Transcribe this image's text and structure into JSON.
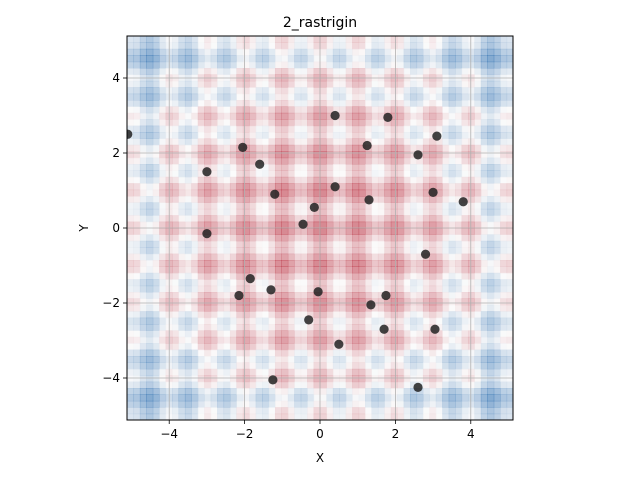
{
  "chart_data": {
    "type": "scatter",
    "title": "2_rastrigin",
    "xlabel": "X",
    "ylabel": "Y",
    "xlim": [
      -5.12,
      5.12
    ],
    "ylim": [
      -5.12,
      5.12
    ],
    "xticks": [
      -4,
      -2,
      0,
      2,
      4
    ],
    "yticks": [
      -4,
      -2,
      0,
      2,
      4
    ],
    "xtick_labels": [
      "−4",
      "−2",
      "0",
      "2",
      "4"
    ],
    "ytick_labels": [
      "−4",
      "−2",
      "0",
      "2",
      "4"
    ],
    "grid": true,
    "background": {
      "type": "heatmap",
      "function": "rastrigin",
      "colormap": "RdBu",
      "note_colors": {
        "low": "#c46a7a",
        "mid": "#f7f7f7",
        "high": "#4a88bb"
      }
    },
    "marker_color": "#222222",
    "points": [
      {
        "x": -5.1,
        "y": 2.5
      },
      {
        "x": 0.4,
        "y": 3.0
      },
      {
        "x": 1.8,
        "y": 2.95
      },
      {
        "x": 3.1,
        "y": 2.45
      },
      {
        "x": -2.05,
        "y": 2.15
      },
      {
        "x": 1.25,
        "y": 2.2
      },
      {
        "x": 2.6,
        "y": 1.95
      },
      {
        "x": -1.6,
        "y": 1.7
      },
      {
        "x": -3.0,
        "y": 1.5
      },
      {
        "x": 0.4,
        "y": 1.1
      },
      {
        "x": 3.0,
        "y": 0.95
      },
      {
        "x": -1.2,
        "y": 0.9
      },
      {
        "x": 1.3,
        "y": 0.75
      },
      {
        "x": 3.8,
        "y": 0.7
      },
      {
        "x": -0.15,
        "y": 0.55
      },
      {
        "x": -0.45,
        "y": 0.1
      },
      {
        "x": -3.0,
        "y": -0.15
      },
      {
        "x": 2.8,
        "y": -0.7
      },
      {
        "x": -1.85,
        "y": -1.35
      },
      {
        "x": -1.3,
        "y": -1.65
      },
      {
        "x": -0.05,
        "y": -1.7
      },
      {
        "x": -2.15,
        "y": -1.8
      },
      {
        "x": 1.75,
        "y": -1.8
      },
      {
        "x": 1.35,
        "y": -2.05
      },
      {
        "x": -0.3,
        "y": -2.45
      },
      {
        "x": 1.7,
        "y": -2.7
      },
      {
        "x": 3.05,
        "y": -2.7
      },
      {
        "x": 0.5,
        "y": -3.1
      },
      {
        "x": -1.25,
        "y": -4.05
      },
      {
        "x": 2.6,
        "y": -4.25
      }
    ]
  }
}
